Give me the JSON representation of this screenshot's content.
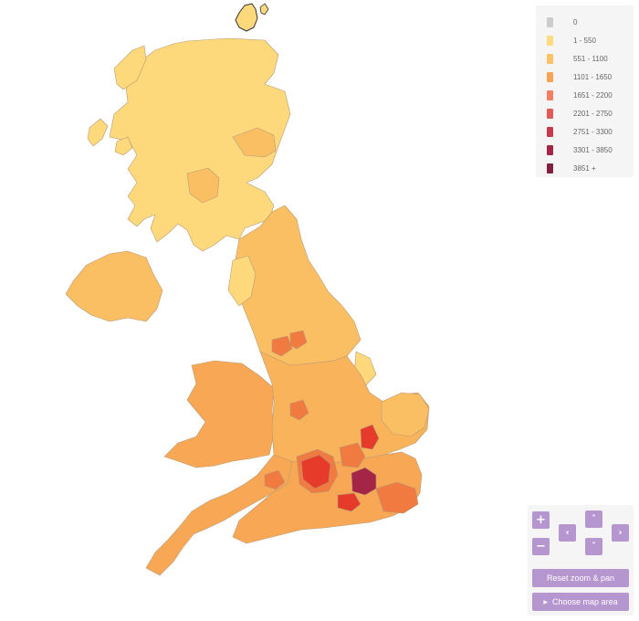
{
  "legend": {
    "items": [
      {
        "label": "0",
        "color": "#cccccc"
      },
      {
        "label": "1 - 550",
        "color": "#fddc7f"
      },
      {
        "label": "551 - 1100",
        "color": "#fdc263"
      },
      {
        "label": "1101 - 1650",
        "color": "#f9a354"
      },
      {
        "label": "1651 - 2200",
        "color": "#f37e63"
      },
      {
        "label": "2201 - 2750",
        "color": "#e35b56"
      },
      {
        "label": "2751 - 3300",
        "color": "#c9384b"
      },
      {
        "label": "3301 - 3850",
        "color": "#a42545"
      },
      {
        "label": "3851 +",
        "color": "#822042"
      }
    ]
  },
  "controls": {
    "zoom_in": "+",
    "zoom_out": "−",
    "pan_up": "˄",
    "pan_down": "˅",
    "pan_left": "‹",
    "pan_right": "›",
    "reset_label": "Reset zoom & pan",
    "choose_label": "Choose map area",
    "choose_icon": "▶"
  },
  "map": {
    "colors": {
      "scotland": "#fdd97c",
      "north": "#fbbf63",
      "midlands": "#f9b35a",
      "south": "#f8a855",
      "hot": "#f07a40",
      "red": "#e63a2a",
      "dark": "#a42545",
      "border": "#b59a78"
    }
  }
}
